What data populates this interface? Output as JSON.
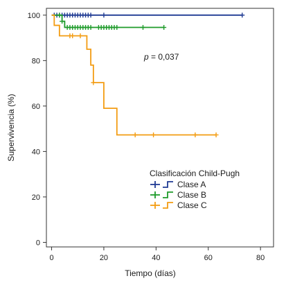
{
  "chart_data": {
    "type": "line",
    "title": "",
    "xlabel": "Tiempo (días)",
    "ylabel": "Supervivencia (%)",
    "xlim": [
      -2,
      85
    ],
    "ylim": [
      -2,
      103
    ],
    "xticks": [
      0,
      20,
      40,
      60,
      80
    ],
    "yticks": [
      0,
      20,
      40,
      60,
      80,
      100
    ],
    "grid": false,
    "annotation": {
      "prefix": "p",
      "text": " = 0,037"
    },
    "legend": {
      "title": "Clasificación Child-Pugh",
      "placement": "center-right"
    },
    "series": [
      {
        "name": "Clase A",
        "color": "#1f3a93",
        "steps": [
          [
            0,
            100
          ],
          [
            73,
            100
          ]
        ],
        "censored": [
          [
            1,
            100
          ],
          [
            2,
            100
          ],
          [
            3,
            100
          ],
          [
            4,
            100
          ],
          [
            5,
            100
          ],
          [
            6,
            100
          ],
          [
            7,
            100
          ],
          [
            8,
            100
          ],
          [
            9,
            100
          ],
          [
            10,
            100
          ],
          [
            11,
            100
          ],
          [
            12,
            100
          ],
          [
            13,
            100
          ],
          [
            14,
            100
          ],
          [
            15,
            100
          ],
          [
            20,
            100
          ],
          [
            73,
            100
          ]
        ]
      },
      {
        "name": "Clase B",
        "color": "#1e9b2a",
        "steps": [
          [
            0,
            100
          ],
          [
            4,
            97.3
          ],
          [
            5,
            94.6
          ],
          [
            43,
            94.6
          ]
        ],
        "censored": [
          [
            3,
            100
          ],
          [
            4,
            97.3
          ],
          [
            6,
            94.6
          ],
          [
            7,
            94.6
          ],
          [
            8,
            94.6
          ],
          [
            9,
            94.6
          ],
          [
            10,
            94.6
          ],
          [
            11,
            94.6
          ],
          [
            12,
            94.6
          ],
          [
            13,
            94.6
          ],
          [
            14,
            94.6
          ],
          [
            15,
            94.6
          ],
          [
            18,
            94.6
          ],
          [
            19,
            94.6
          ],
          [
            20,
            94.6
          ],
          [
            21,
            94.6
          ],
          [
            22,
            94.6
          ],
          [
            23,
            94.6
          ],
          [
            24,
            94.6
          ],
          [
            25,
            94.6
          ],
          [
            35,
            94.6
          ],
          [
            43,
            94.6
          ]
        ]
      },
      {
        "name": "Clase C",
        "color": "#f39c12",
        "steps": [
          [
            0,
            100
          ],
          [
            1,
            95.5
          ],
          [
            3,
            90.9
          ],
          [
            13.5,
            85
          ],
          [
            15,
            78
          ],
          [
            16,
            70.3
          ],
          [
            20,
            59
          ],
          [
            25,
            47.3
          ],
          [
            63,
            47.3
          ]
        ],
        "censored": [
          [
            7,
            90.9
          ],
          [
            8,
            90.9
          ],
          [
            11,
            90.9
          ],
          [
            16,
            70.3
          ],
          [
            32,
            47.3
          ],
          [
            39,
            47.3
          ],
          [
            55,
            47.3
          ],
          [
            63,
            47.3
          ]
        ]
      }
    ]
  }
}
